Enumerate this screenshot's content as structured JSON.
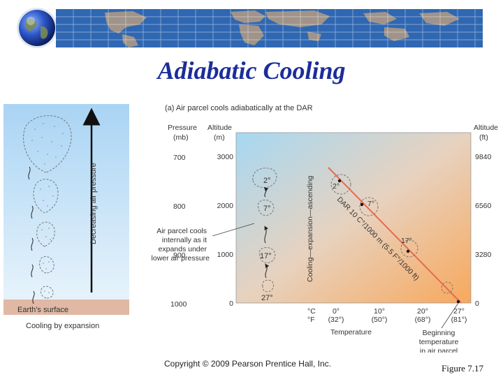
{
  "slide": {
    "title": "Adiabatic Cooling",
    "copyright": "Copyright © 2009 Pearson Prentice Hall, Inc.",
    "figure_label": "Figure  7.17"
  },
  "left_panel": {
    "arrow_label": "Decreasing air pressure",
    "surface_label": "Earth's surface",
    "caption": "Cooling by expansion"
  },
  "right_panel": {
    "heading": "(a) Air parcel cools adiabatically at the DAR",
    "pressure_header": [
      "Pressure",
      "(mb)"
    ],
    "altitude_m_header": [
      "Altitude",
      "(m)"
    ],
    "altitude_ft_header": [
      "Altitude",
      "(ft)"
    ],
    "pressure_ticks": [
      "700",
      "800",
      "900",
      "1000"
    ],
    "altitude_m_ticks": [
      "3000",
      "2000",
      "1000",
      "0"
    ],
    "altitude_ft_ticks": [
      "9840",
      "6560",
      "3280",
      "0"
    ],
    "unit_c": "°C",
    "unit_f": "°F",
    "temp_ticks": [
      {
        "c": "0°",
        "f": "(32°)"
      },
      {
        "c": "10°",
        "f": "(50°)"
      },
      {
        "c": "20°",
        "f": "(68°)"
      },
      {
        "c": "27°",
        "f": "(81°)"
      }
    ],
    "temp_axis_label": "Temperature",
    "vertical_label": "Cooling—expansion—ascending",
    "dar_label": "DAR 10 C°/1000 m (5.5 F°/1000 ft)",
    "parcel_temps_left": [
      "2°",
      "7°",
      "17°",
      "27°"
    ],
    "parcel_temps_line": [
      "2°",
      "7°",
      "17°"
    ],
    "callout": [
      "Air parcel cools",
      "internally as it",
      "expands under",
      "lower air pressure"
    ],
    "beginning_label": [
      "Beginning",
      "temperature",
      "in air parcel"
    ]
  }
}
